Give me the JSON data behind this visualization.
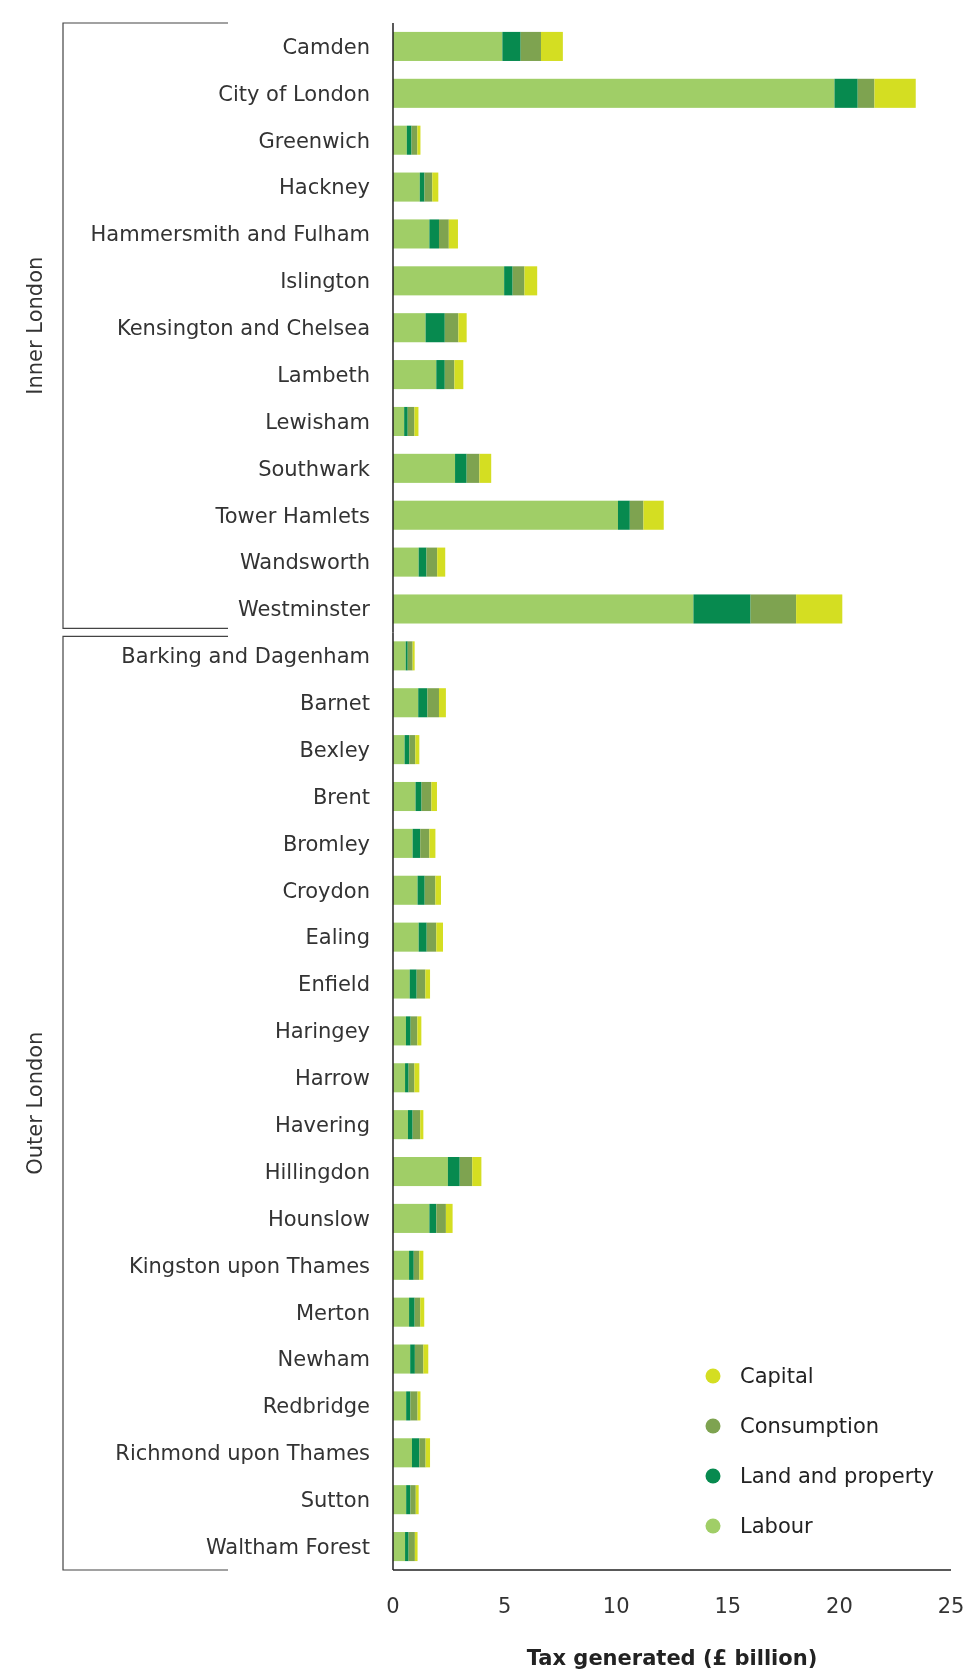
{
  "chart_data": [
    {
      "type": "bar",
      "orientation": "horizontal",
      "stacked": true,
      "ylabel": "Inner London",
      "xlim": [
        0,
        25
      ],
      "tick_labels": "y",
      "grid": false,
      "categories": [
        "Camden",
        "City of London",
        "Greenwich",
        "Hackney",
        "Hammersmith and Fulham",
        "Islington",
        "Kensington and Chelsea",
        "Lambeth",
        "Lewisham",
        "Southwark",
        "Tower Hamlets",
        "Wandsworth",
        "Westminster"
      ],
      "series": [
        {
          "color": "#a0ce67",
          "values": [
            4.9,
            19.78,
            0.62,
            1.2,
            1.63,
            4.98,
            1.46,
            1.94,
            0.5,
            2.78,
            10.08,
            1.15,
            13.46
          ]
        },
        {
          "color": "#078a4f",
          "values": [
            0.82,
            1.04,
            0.21,
            0.21,
            0.43,
            0.38,
            0.86,
            0.38,
            0.16,
            0.52,
            0.53,
            0.35,
            2.56
          ]
        },
        {
          "color": "#7ea350",
          "values": [
            0.91,
            0.75,
            0.26,
            0.35,
            0.44,
            0.53,
            0.61,
            0.43,
            0.3,
            0.57,
            0.61,
            0.48,
            2.04
          ]
        },
        {
          "color": "#d4de22",
          "values": [
            0.98,
            1.85,
            0.14,
            0.27,
            0.41,
            0.57,
            0.37,
            0.4,
            0.18,
            0.53,
            0.91,
            0.36,
            2.07
          ]
        }
      ]
    },
    {
      "type": "bar",
      "orientation": "horizontal",
      "stacked": true,
      "ylabel": "Outer London",
      "xlabel": "Tax generated (£ billion)",
      "xlim": [
        0,
        25
      ],
      "xticks": [
        0,
        5,
        10,
        15,
        20,
        25
      ],
      "grid": false,
      "legend": "bottom right",
      "categories": [
        "Barking and Dagenham",
        "Barnet",
        "Bexley",
        "Brent",
        "Bromley",
        "Croydon",
        "Ealing",
        "Enfield",
        "Haringey",
        "Harrow",
        "Havering",
        "Hillingdon",
        "Hounslow",
        "Kingston upon Thames",
        "Merton",
        "Newham",
        "Redbridge",
        "Richmond upon Thames",
        "Sutton",
        "Waltham Forest"
      ],
      "series": [
        {
          "name": "Labour",
          "color": "#a0ce67",
          "values": [
            0.57,
            1.13,
            0.52,
            1.01,
            0.88,
            1.1,
            1.15,
            0.75,
            0.58,
            0.54,
            0.67,
            2.46,
            1.63,
            0.72,
            0.72,
            0.77,
            0.59,
            0.85,
            0.59,
            0.54
          ]
        },
        {
          "name": "Land and property",
          "color": "#078a4f",
          "values": [
            0.09,
            0.41,
            0.21,
            0.27,
            0.34,
            0.32,
            0.36,
            0.31,
            0.21,
            0.16,
            0.21,
            0.53,
            0.31,
            0.21,
            0.25,
            0.21,
            0.19,
            0.33,
            0.19,
            0.16
          ]
        },
        {
          "name": "Consumption",
          "color": "#7ea350",
          "values": [
            0.22,
            0.52,
            0.27,
            0.44,
            0.41,
            0.48,
            0.43,
            0.39,
            0.3,
            0.26,
            0.34,
            0.56,
            0.43,
            0.25,
            0.25,
            0.38,
            0.32,
            0.28,
            0.24,
            0.28
          ]
        },
        {
          "name": "Capital",
          "color": "#d4de22",
          "values": [
            0.09,
            0.31,
            0.18,
            0.25,
            0.27,
            0.25,
            0.3,
            0.21,
            0.18,
            0.22,
            0.14,
            0.41,
            0.3,
            0.18,
            0.18,
            0.22,
            0.13,
            0.2,
            0.13,
            0.12
          ]
        }
      ]
    }
  ]
}
